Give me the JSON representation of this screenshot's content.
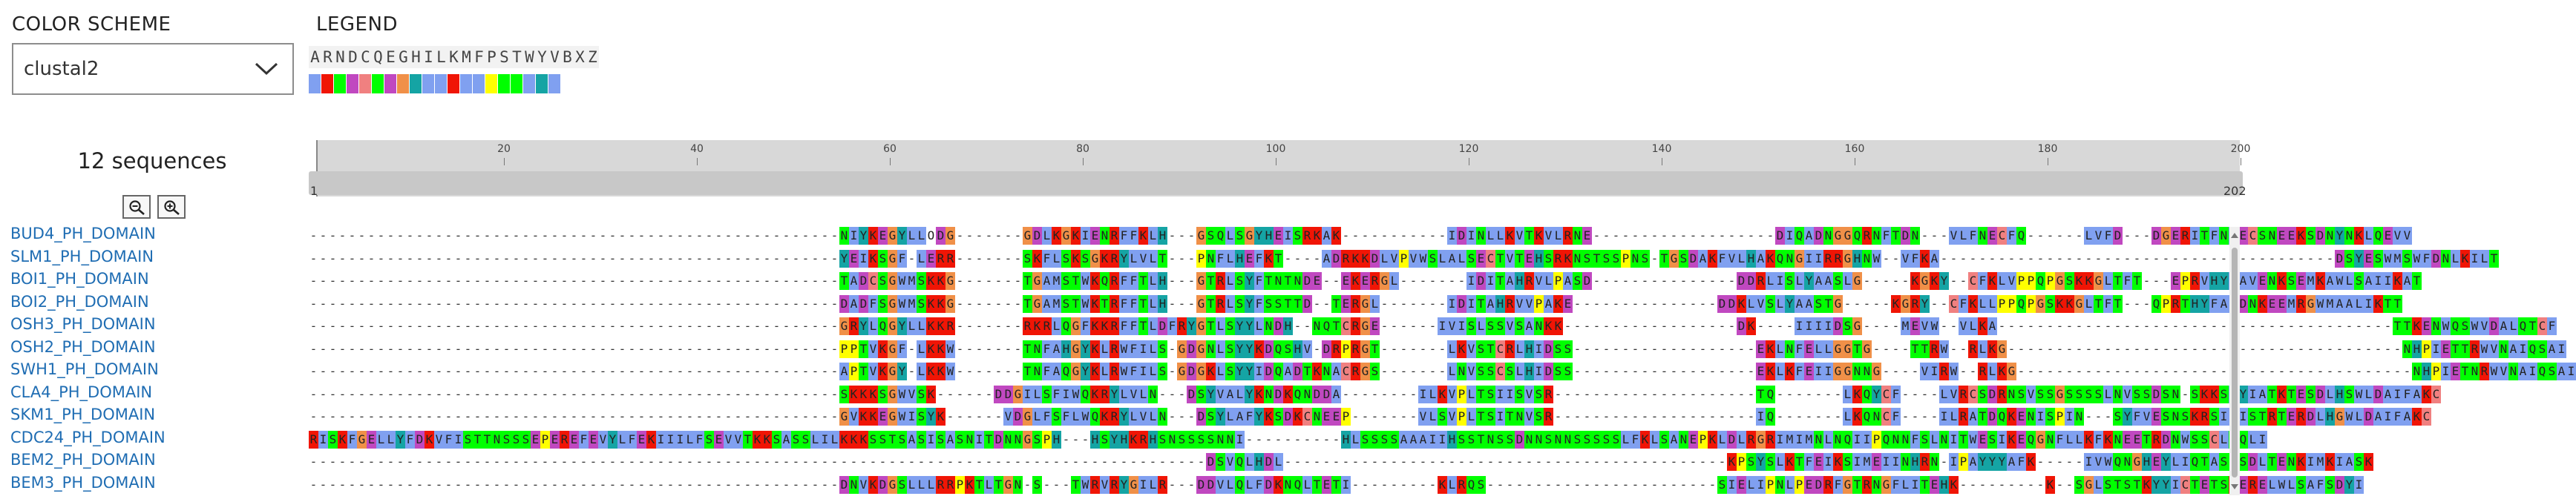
{
  "controls": {
    "color_scheme_label": "COLOR SCHEME",
    "color_scheme_value": "clustal2",
    "legend_label": "LEGEND"
  },
  "legend": {
    "letters": [
      "A",
      "R",
      "N",
      "D",
      "C",
      "Q",
      "E",
      "G",
      "H",
      "I",
      "L",
      "K",
      "M",
      "F",
      "P",
      "S",
      "T",
      "W",
      "Y",
      "V",
      "B",
      "X",
      "Z"
    ],
    "colors": {
      "A": "#80a0f0",
      "R": "#f01505",
      "N": "#00ff00",
      "D": "#c048c0",
      "C": "#f08080",
      "Q": "#00ff00",
      "E": "#c048c0",
      "G": "#f09048",
      "H": "#15a4a4",
      "I": "#80a0f0",
      "L": "#80a0f0",
      "K": "#f01505",
      "M": "#80a0f0",
      "F": "#80a0f0",
      "P": "#ffff00",
      "S": "#00ff00",
      "T": "#00ff00",
      "W": "#80a0f0",
      "Y": "#15a4a4",
      "V": "#80a0f0",
      "B": "#ffffff",
      "X": "#ffffff",
      "Z": "#ffffff"
    }
  },
  "sequence_count_text": "12 sequences",
  "ruler": {
    "ticks": [
      "20",
      "40",
      "60",
      "80",
      "100",
      "120",
      "140",
      "160",
      "180",
      "200"
    ],
    "start_label": "1",
    "end_label": "202"
  },
  "sequences": [
    {
      "name": "BUD4_PH_DOMAIN",
      "seq": "-------------------------------------------------------NIYKEGYLLODG-------GDLKGKIENRFFKLH---GSQLSGYHEISRKAK-----------IDINLLKVTKVLRNE-------------------DIQADNGGQRNFTDN---VLFNECFQ------LVFD---DGERITFNAECSNEEKSDNYNKLQEVV"
    },
    {
      "name": "SLM1_PH_DOMAIN",
      "seq": "-------------------------------------------------------YEIKSGF-LERR-------SKFLSKSGKRYLVLT---PNFLHEFKT----ADRKKDLVPVWSLALSECTVTEHSRKNSTSSPNS-TGSDAKFVLHAKQNGIIRRGHNW--VFKA-----------------------------------------DSYESWMSWFDNLKILT"
    },
    {
      "name": "BOI1_PH_DOMAIN",
      "seq": "-------------------------------------------------------TADCSGWMSKKG-------TGAMSTWKQRFFTLH---GTRLSYFTNTNDE--EKERGL-------IDITAHRVLPASD---------------DDRLISLYAASLG-----KGKY--CFKLVPPQPGSKKGLTFT---EPRVHYFAVENKSEMKAWLSAIIKAT"
    },
    {
      "name": "BOI2_PH_DOMAIN",
      "seq": "-------------------------------------------------------DADFSGWMSKKG-------TGAMSTWKTRFFTLH---GTRLSYFSSTTD--TERGL-------IDITAHRVVPAKE---------------DDKLVSLYAASTG-----KGRY--CFKLLPPQPGSKKGLTFT---QPRTHYFAVDNKEEMRGWMAALIKTT"
    },
    {
      "name": "OSH3_PH_DOMAIN",
      "seq": "-------------------------------------------------------GRYLQGYLLKKR-------RKRLQGFKKRFFTLDFRYGTLSYYLNDH--NQTCRGE------IVISLSSVSANKK------------------DK----IIIIDSG----MEVW--VLKA-----------------------------------------TTKENWQSWVDALQTCF"
    },
    {
      "name": "OSH2_PH_DOMAIN",
      "seq": "-------------------------------------------------------PPTVKGF-LKKW-------TNFAHGYKLRWFILS-GDGNLSYYKDQSHV-DRPRGT-------LKVSTCRLHIDSS-------------------EKLNFELLGGTG----TTRW--RLKG-----------------------------------------NHPIETTRWVNAIQSAI"
    },
    {
      "name": "SWH1_PH_DOMAIN",
      "seq": "-------------------------------------------------------APTVKGY-LKKW-------TNFAQGYKLRWFILS-GDGKLSYYIDQADTKNACRGS-------LNVSSCSLHIDSS-------------------EKLKFEIIGGNNG----VIRW--RLKG-----------------------------------------NHPIETNRWVNAIQSAI"
    },
    {
      "name": "CLA4_PH_DOMAIN",
      "seq": "-------------------------------------------------------SKKKSGWVSK------DDGILSFIWQKRYLVLN---DSYVALYKNDKQNDDA--------ILKVPLTSIISVSR---------------------TQ-------LKQYCF----LVRCSDRNSVSSGSSSSLNVSSDSN-SKKSIYIATKTESDLHSWLDAIFAKC"
    },
    {
      "name": "SKM1_PH_DOMAIN",
      "seq": "-------------------------------------------------------GVKKEGWISYK------VDGLFSFLWQKRYLVLN---DSYLAFYKSDKCNEEP-------VLSVPLTSITNVSR---------------------IQ-------LKQNCF----ILRATDQKENISPIN---SYFVESNSKRSIFISTRTERDLHGWLDAIFAKC"
    },
    {
      "name": "CDC24_PH_DOMAIN",
      "seq": "RISKFGELLYFDKVFISTTNSSSEPEREFEVYLFEKIIILFSEVVTKKSASSLILKKKSSTSASISASNITDNNGSPH---HSYHKRHSNSSSSNNI----------HLSSSSAAAIIHSSTNSSDNNSNNSSSSSLFKLSANEPKLDLRGRIMIMNLNQIIPQNNFSLNITWESIKEQGNFLLKFKNEETRDNWSSCLQQLI"
    },
    {
      "name": "BEM2_PH_DOMAIN",
      "seq": "---------------------------------------------------------------------------------------------DSVQLHDL----------------------------------------------KPSYSLKTFEIKSIMEIINHRN-IPAYYYAFK-----IVWQNGHEYLIQTASSSDLTENKIMKIASK"
    },
    {
      "name": "BEM3_PH_DOMAIN",
      "seq": "-------------------------------------------------------DNVKDGSLLLRRPKTLTGN-S---TWRVRYGILR---DDVLQLFDKNQLTETI---------KLRQS------------------------SIELIPNLPEDRFGTRNGFLITEHK---------K--SGLSTSTKYYICTETSKERELWLSAFSDYI"
    }
  ]
}
